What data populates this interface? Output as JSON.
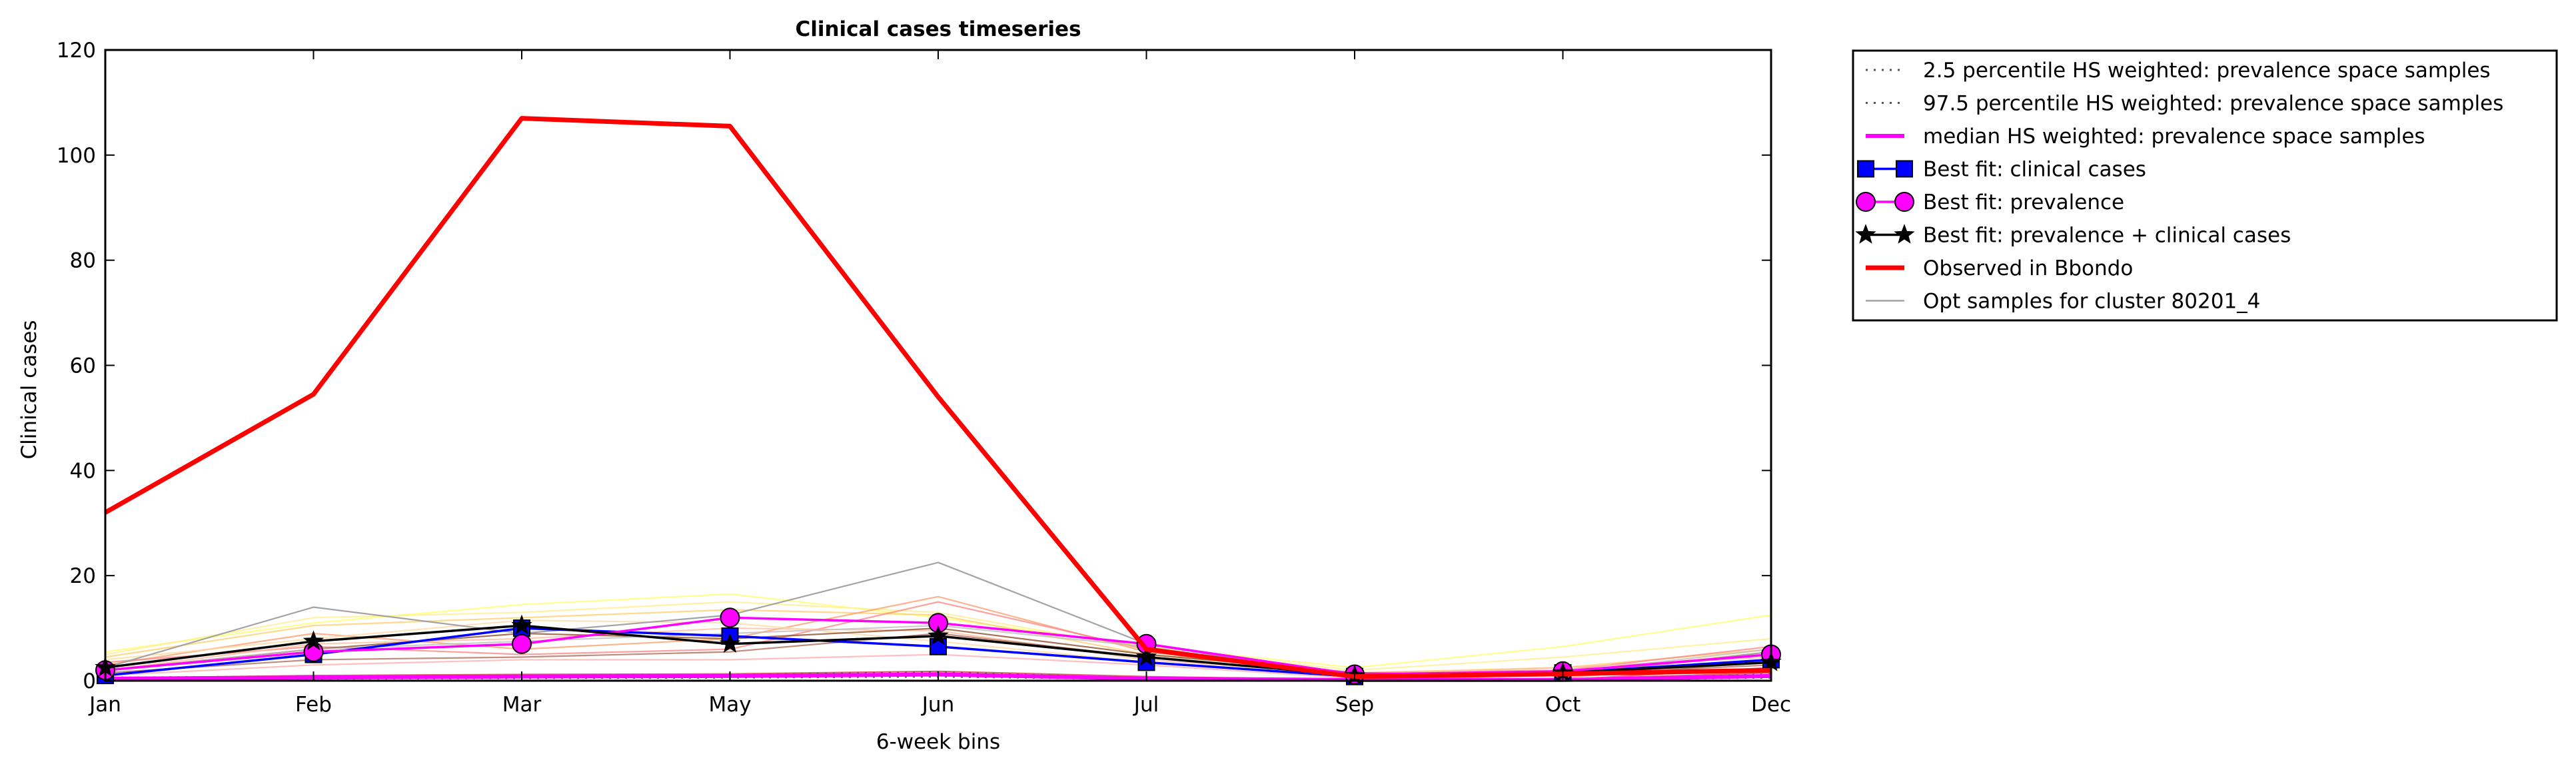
{
  "chart_data": {
    "type": "line",
    "title": "Clinical cases timeseries",
    "xlabel": "6-week bins",
    "ylabel": "Clinical cases",
    "categories": [
      "Jan",
      "Feb",
      "Mar",
      "May",
      "Jun",
      "Jul",
      "Sep",
      "Oct",
      "Dec"
    ],
    "yticks": [
      "0",
      "20",
      "40",
      "60",
      "80",
      "100",
      "120"
    ],
    "ylim": [
      0,
      120
    ],
    "grid": false,
    "legend_position": "outside-right",
    "series": [
      {
        "name": "2.5 percentile HS weighted: prevalence space samples",
        "color": "#555555",
        "style": "dotted",
        "values": [
          0.3,
          0.4,
          0.5,
          0.6,
          0.8,
          0.3,
          0.1,
          0.1,
          0.6
        ]
      },
      {
        "name": "97.5 percentile HS weighted: prevalence space samples",
        "color": "#555555",
        "style": "dotted",
        "values": [
          0.6,
          0.8,
          1.0,
          1.1,
          1.6,
          0.5,
          0.2,
          0.2,
          1.2
        ]
      },
      {
        "name": "median HS weighted: prevalence space samples",
        "color": "#ff00ff",
        "style": "solid-thick",
        "values": [
          0.4,
          0.6,
          0.8,
          0.9,
          1.2,
          0.4,
          0.15,
          0.15,
          0.9
        ]
      },
      {
        "name": "Best fit: clinical cases",
        "color": "#0000ff",
        "marker": "square",
        "values": [
          1.0,
          5.0,
          10.0,
          8.5,
          6.5,
          3.5,
          0.8,
          1.5,
          4.0
        ]
      },
      {
        "name": "Best fit: prevalence",
        "color": "#ff00ff",
        "marker": "circle",
        "values": [
          2.0,
          5.5,
          7.0,
          12.0,
          11.0,
          7.0,
          1.2,
          1.8,
          5.0
        ]
      },
      {
        "name": "Best fit: prevalence + clinical cases",
        "color": "#000000",
        "marker": "star",
        "values": [
          2.5,
          7.5,
          10.5,
          7.0,
          8.5,
          4.5,
          1.0,
          1.5,
          3.5
        ]
      },
      {
        "name": "Observed in Bbondo",
        "color": "#ff0000",
        "style": "solid-thick",
        "values": [
          32.0,
          54.5,
          107.0,
          105.5,
          54.0,
          6.0,
          0.8,
          1.3,
          2.0
        ]
      },
      {
        "name": "Opt samples for cluster 80201_4",
        "color": "#9a9a9a",
        "style": "solid-thin",
        "values": [
          2.5,
          14.0,
          9.0,
          12.5,
          22.5,
          7.0,
          0.5,
          1.0,
          5.5
        ]
      }
    ],
    "background_series": [
      {
        "color": "#ffff66",
        "values": [
          5.5,
          11.0,
          14.5,
          16.5,
          12.0,
          6.5,
          2.5,
          6.5,
          12.5
        ]
      },
      {
        "color": "#ffee88",
        "values": [
          5.0,
          12.0,
          13.0,
          15.0,
          13.0,
          6.0,
          2.0,
          4.5,
          8.0
        ]
      },
      {
        "color": "#ffcc66",
        "values": [
          4.5,
          10.5,
          12.0,
          13.5,
          12.5,
          5.0,
          1.5,
          2.5,
          6.0
        ]
      },
      {
        "color": "#ff9966",
        "values": [
          3.0,
          9.0,
          6.0,
          8.0,
          16.0,
          5.5,
          1.0,
          1.5,
          5.0
        ]
      },
      {
        "color": "#ff8080",
        "values": [
          3.5,
          6.5,
          5.0,
          6.0,
          15.0,
          6.0,
          1.5,
          2.0,
          6.5
        ]
      },
      {
        "color": "#ffbb99",
        "values": [
          2.0,
          7.0,
          8.0,
          10.0,
          9.5,
          4.0,
          1.2,
          2.5,
          4.5
        ]
      },
      {
        "color": "#ffd9a0",
        "values": [
          4.0,
          8.0,
          11.5,
          11.0,
          7.5,
          3.5,
          0.8,
          1.5,
          5.5
        ]
      },
      {
        "color": "#aa6655",
        "values": [
          1.5,
          4.0,
          4.5,
          5.5,
          9.0,
          4.5,
          1.0,
          1.2,
          3.0
        ]
      },
      {
        "color": "#884422",
        "values": [
          2.0,
          6.0,
          9.0,
          8.0,
          10.0,
          5.0,
          1.5,
          1.0,
          3.5
        ]
      },
      {
        "color": "#cc3333",
        "values": [
          0.5,
          1.0,
          1.2,
          1.3,
          1.8,
          0.8,
          0.2,
          0.3,
          1.5
        ]
      },
      {
        "color": "#ff3366",
        "values": [
          0.3,
          0.6,
          0.9,
          1.0,
          1.5,
          0.5,
          0.2,
          0.2,
          2.5
        ]
      },
      {
        "color": "#ffaaaa",
        "values": [
          1.0,
          3.0,
          4.0,
          4.0,
          5.0,
          3.0,
          0.5,
          0.5,
          4.0
        ]
      },
      {
        "color": "#bbbbbb",
        "values": [
          2.0,
          6.0,
          7.5,
          9.0,
          10.5,
          6.5,
          0.5,
          1.5,
          6.0
        ]
      }
    ]
  }
}
